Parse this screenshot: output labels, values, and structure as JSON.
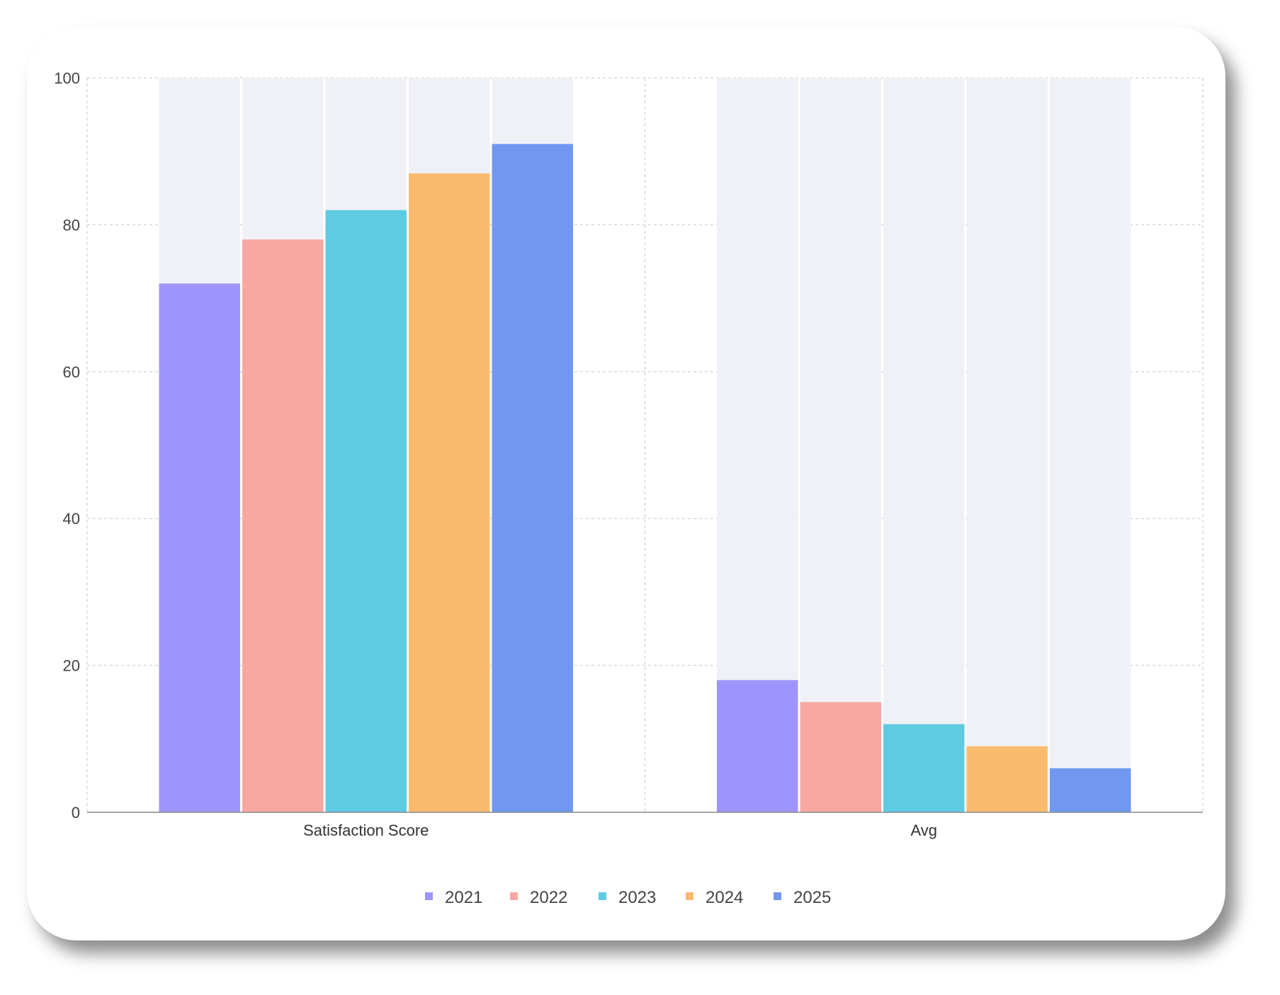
{
  "chart_data": {
    "type": "bar",
    "title": "",
    "xlabel": "",
    "ylabel": "",
    "categories": [
      "Satisfaction Score",
      "Avg"
    ],
    "series": [
      {
        "name": "2021",
        "color": "#9f94fc",
        "values": [
          72,
          18
        ]
      },
      {
        "name": "2022",
        "color": "#f9a7a2",
        "values": [
          78,
          15
        ]
      },
      {
        "name": "2023",
        "color": "#5ecbe2",
        "values": [
          82,
          12
        ]
      },
      {
        "name": "2024",
        "color": "#fbbb6f",
        "values": [
          87,
          9
        ]
      },
      {
        "name": "2025",
        "color": "#7197f1",
        "values": [
          91,
          6
        ]
      }
    ],
    "ylim": [
      0,
      100
    ],
    "yticks": [
      "0",
      "20",
      "40",
      "60",
      "80",
      "100"
    ],
    "grid": true,
    "legend_position": "bottom-center"
  }
}
